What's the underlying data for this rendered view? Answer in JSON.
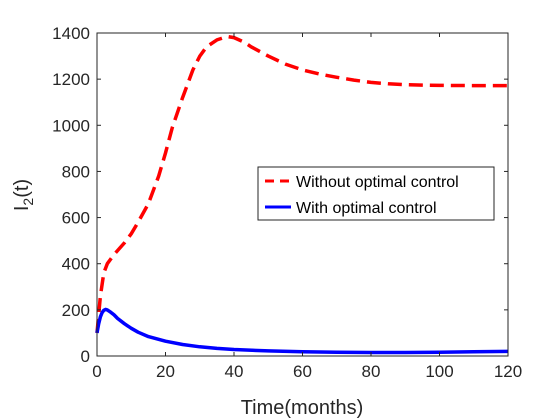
{
  "chart_data": {
    "type": "line",
    "title": "",
    "xlabel": "Time(months)",
    "ylabel_main": "I",
    "ylabel_sub": "2",
    "ylabel_suffix": "(t)",
    "xlim": [
      0,
      120
    ],
    "ylim": [
      0,
      1400
    ],
    "xticks": [
      0,
      20,
      40,
      60,
      80,
      100,
      120
    ],
    "yticks": [
      0,
      200,
      400,
      600,
      800,
      1000,
      1200,
      1400
    ],
    "grid": false,
    "legend_position": "right",
    "series": [
      {
        "name": "Without optimal control",
        "color": "#ff0000",
        "style": "dashed",
        "x": [
          0,
          1,
          2,
          3,
          5,
          8,
          10,
          12,
          15,
          18,
          20,
          22,
          25,
          28,
          30,
          32,
          35,
          38,
          40,
          43,
          45,
          50,
          55,
          60,
          65,
          70,
          75,
          80,
          85,
          90,
          95,
          100,
          110,
          120
        ],
        "y": [
          100,
          260,
          360,
          400,
          440,
          490,
          530,
          580,
          660,
          780,
          880,
          990,
          1120,
          1240,
          1300,
          1340,
          1370,
          1385,
          1380,
          1360,
          1340,
          1300,
          1265,
          1240,
          1222,
          1208,
          1196,
          1186,
          1180,
          1176,
          1174,
          1173,
          1172,
          1172
        ]
      },
      {
        "name": "With optimal control",
        "color": "#0000ff",
        "style": "solid",
        "x": [
          0,
          0.5,
          1,
          1.5,
          2,
          2.5,
          3,
          4,
          5,
          6,
          8,
          10,
          12,
          15,
          20,
          25,
          30,
          35,
          40,
          50,
          60,
          70,
          80,
          90,
          100,
          110,
          120
        ],
        "y": [
          100,
          140,
          170,
          188,
          198,
          202,
          200,
          190,
          178,
          163,
          140,
          120,
          103,
          84,
          64,
          50,
          40,
          33,
          28,
          22,
          18,
          16,
          15,
          15,
          16,
          18,
          20
        ]
      }
    ]
  }
}
